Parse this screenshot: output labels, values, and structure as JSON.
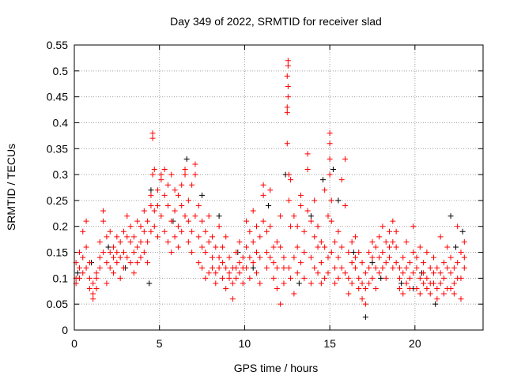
{
  "chart_data": {
    "type": "scatter",
    "title": "Day 349 of 2022, SRMTID for receiver slad",
    "xlabel": "GPS time / hours",
    "ylabel": "SRMTID / TECUs",
    "xlim": [
      0,
      24
    ],
    "ylim": [
      0,
      0.55
    ],
    "xticks": [
      0,
      5,
      10,
      15,
      20
    ],
    "yticks": [
      0,
      0.05,
      0.1,
      0.15,
      0.2,
      0.25,
      0.3,
      0.35,
      0.4,
      0.45,
      0.5,
      0.55
    ],
    "ytick_labels": [
      "0",
      "0.05",
      "0.1",
      "0.15",
      "0.2",
      "0.25",
      "0.3",
      "0.35",
      "0.4",
      "0.45",
      "0.5",
      "0.55"
    ],
    "grid": true,
    "marker": "plus",
    "series": [
      {
        "name": "series-black",
        "color": "#000000",
        "points": [
          [
            0.2,
            [
              0.11
            ]
          ],
          [
            1.0,
            [
              0.13
            ]
          ],
          [
            2.0,
            [
              0.16
            ]
          ],
          [
            3.0,
            [
              0.12
            ]
          ],
          [
            4.4,
            [
              0.09
            ]
          ],
          [
            4.5,
            [
              0.27
            ]
          ],
          [
            5.8,
            [
              0.21
            ]
          ],
          [
            6.6,
            [
              0.33
            ]
          ],
          [
            7.5,
            [
              0.26
            ]
          ],
          [
            8.5,
            [
              0.22
            ]
          ],
          [
            9.6,
            [
              0.15
            ]
          ],
          [
            10.5,
            [
              0.12
            ]
          ],
          [
            11.4,
            [
              0.24
            ]
          ],
          [
            12.4,
            [
              0.3
            ]
          ],
          [
            13.2,
            [
              0.09
            ]
          ],
          [
            13.9,
            [
              0.22
            ]
          ],
          [
            14.6,
            [
              0.29
            ]
          ],
          [
            15.2,
            [
              0.31
            ]
          ],
          [
            15.5,
            [
              0.25
            ]
          ],
          [
            16.4,
            [
              0.15
            ]
          ],
          [
            17.1,
            [
              0.025
            ]
          ],
          [
            17.5,
            [
              0.13
            ]
          ],
          [
            18.0,
            [
              0.1
            ]
          ],
          [
            19.2,
            [
              0.09
            ]
          ],
          [
            19.9,
            [
              0.08
            ]
          ],
          [
            20.4,
            [
              0.11
            ]
          ],
          [
            21.2,
            [
              0.05
            ]
          ],
          [
            22.1,
            [
              0.22
            ]
          ],
          [
            22.4,
            [
              0.16
            ]
          ],
          [
            22.8,
            [
              0.19
            ]
          ]
        ]
      },
      {
        "name": "series-red",
        "color": "#ff0000",
        "points": [
          [
            0.1,
            [
              0.1,
              0.13,
              0.09
            ]
          ],
          [
            0.3,
            [
              0.12,
              0.15,
              0.1
            ]
          ],
          [
            0.5,
            [
              0.11,
              0.19,
              0.14
            ]
          ],
          [
            0.7,
            [
              0.21,
              0.16,
              0.12
            ]
          ],
          [
            0.9,
            [
              0.1,
              0.08,
              0.13
            ]
          ],
          [
            1.1,
            [
              0.07,
              0.06,
              0.09
            ]
          ],
          [
            1.3,
            [
              0.08,
              0.11,
              0.1
            ]
          ],
          [
            1.5,
            [
              0.14,
              0.17,
              0.12
            ]
          ],
          [
            1.7,
            [
              0.23,
              0.21,
              0.15
            ]
          ],
          [
            1.9,
            [
              0.13,
              0.09,
              0.18
            ]
          ],
          [
            2.1,
            [
              0.15,
              0.12,
              0.19
            ]
          ],
          [
            2.3,
            [
              0.14,
              0.16,
              0.11
            ]
          ],
          [
            2.5,
            [
              0.18,
              0.13,
              0.15
            ]
          ],
          [
            2.7,
            [
              0.1,
              0.14,
              0.17
            ]
          ],
          [
            2.9,
            [
              0.19,
              0.15,
              0.12
            ]
          ],
          [
            3.1,
            [
              0.22,
              0.18,
              0.14
            ]
          ],
          [
            3.3,
            [
              0.13,
              0.17,
              0.2
            ]
          ],
          [
            3.5,
            [
              0.15,
              0.11,
              0.18
            ]
          ],
          [
            3.7,
            [
              0.16,
              0.13,
              0.21
            ]
          ],
          [
            3.9,
            [
              0.2,
              0.17,
              0.14
            ]
          ],
          [
            4.1,
            [
              0.19,
              0.15,
              0.23
            ]
          ],
          [
            4.3,
            [
              0.21,
              0.17,
              0.13
            ]
          ],
          [
            4.5,
            [
              0.24,
              0.26,
              0.19
            ]
          ],
          [
            4.6,
            [
              0.37,
              0.38,
              0.3
            ]
          ],
          [
            4.7,
            [
              0.31,
              0.23,
              0.2
            ]
          ],
          [
            4.9,
            [
              0.18,
              0.24,
              0.27
            ]
          ],
          [
            5.1,
            [
              0.29,
              0.3,
              0.22
            ]
          ],
          [
            5.3,
            [
              0.31,
              0.26,
              0.19
            ]
          ],
          [
            5.5,
            [
              0.24,
              0.28,
              0.17
            ]
          ],
          [
            5.7,
            [
              0.3,
              0.21,
              0.15
            ]
          ],
          [
            5.9,
            [
              0.27,
              0.23,
              0.18
            ]
          ],
          [
            6.1,
            [
              0.26,
              0.2,
              0.16
            ]
          ],
          [
            6.3,
            [
              0.28,
              0.24,
              0.19
            ]
          ],
          [
            6.5,
            [
              0.31,
              0.3,
              0.22
            ]
          ],
          [
            6.7,
            [
              0.25,
              0.21,
              0.17
            ]
          ],
          [
            6.9,
            [
              0.28,
              0.19,
              0.15
            ]
          ],
          [
            7.1,
            [
              0.32,
              0.3,
              0.22
            ]
          ],
          [
            7.3,
            [
              0.24,
              0.18,
              0.13
            ]
          ],
          [
            7.5,
            [
              0.21,
              0.16,
              0.12
            ]
          ],
          [
            7.7,
            [
              0.19,
              0.15,
              0.1
            ]
          ],
          [
            7.9,
            [
              0.22,
              0.17,
              0.11
            ]
          ],
          [
            8.1,
            [
              0.14,
              0.12,
              0.18
            ]
          ],
          [
            8.3,
            [
              0.16,
              0.11,
              0.09
            ]
          ],
          [
            8.5,
            [
              0.2,
              0.14,
              0.12
            ]
          ],
          [
            8.7,
            [
              0.13,
              0.1,
              0.16
            ]
          ],
          [
            8.9,
            [
              0.18,
              0.12,
              0.08
            ]
          ],
          [
            9.1,
            [
              0.11,
              0.14,
              0.1
            ]
          ],
          [
            9.3,
            [
              0.09,
              0.06,
              0.12
            ]
          ],
          [
            9.5,
            [
              0.15,
              0.12,
              0.1
            ]
          ],
          [
            9.7,
            [
              0.17,
              0.11,
              0.13
            ]
          ],
          [
            9.9,
            [
              0.12,
              0.09,
              0.14
            ]
          ],
          [
            10.1,
            [
              0.16,
              0.21,
              0.12
            ]
          ],
          [
            10.3,
            [
              0.19,
              0.14,
              0.1
            ]
          ],
          [
            10.5,
            [
              0.17,
              0.13,
              0.23
            ]
          ],
          [
            10.7,
            [
              0.15,
              0.2,
              0.11
            ]
          ],
          [
            10.9,
            [
              0.14,
              0.18,
              0.09
            ]
          ],
          [
            11.1,
            [
              0.28,
              0.26,
              0.21
            ]
          ],
          [
            11.3,
            [
              0.15,
              0.12,
              0.19
            ]
          ],
          [
            11.5,
            [
              0.27,
              0.2,
              0.14
            ]
          ],
          [
            11.7,
            [
              0.13,
              0.1,
              0.16
            ]
          ],
          [
            11.9,
            [
              0.08,
              0.12,
              0.17
            ]
          ],
          [
            12.1,
            [
              0.22,
              0.16,
              0.05
            ]
          ],
          [
            12.3,
            [
              0.12,
              0.09,
              0.14
            ]
          ],
          [
            12.5,
            [
              0.43,
              0.42,
              0.36,
              0.49
            ]
          ],
          [
            12.55,
            [
              0.52,
              0.51,
              0.47,
              0.45
            ]
          ],
          [
            12.6,
            [
              0.3,
              0.25,
              0.12
            ]
          ],
          [
            12.7,
            [
              0.29,
              0.2,
              0.1
            ]
          ],
          [
            12.9,
            [
              0.14,
              0.07,
              0.22
            ]
          ],
          [
            13.1,
            [
              0.2,
              0.16,
              0.11
            ]
          ],
          [
            13.3,
            [
              0.26,
              0.24,
              0.13
            ]
          ],
          [
            13.5,
            [
              0.19,
              0.15,
              0.1
            ]
          ],
          [
            13.7,
            [
              0.34,
              0.31,
              0.23
            ]
          ],
          [
            13.9,
            [
              0.21,
              0.14,
              0.09
            ]
          ],
          [
            14.1,
            [
              0.18,
              0.12,
              0.25
            ]
          ],
          [
            14.3,
            [
              0.16,
              0.11,
              0.2
            ]
          ],
          [
            14.5,
            [
              0.13,
              0.09,
              0.17
            ]
          ],
          [
            14.7,
            [
              0.27,
              0.16,
              0.1
            ]
          ],
          [
            14.9,
            [
              0.22,
              0.14,
              0.11
            ]
          ],
          [
            15.0,
            [
              0.38,
              0.36,
              0.33,
              0.3
            ]
          ],
          [
            15.1,
            [
              0.25,
              0.21,
              0.15
            ]
          ],
          [
            15.3,
            [
              0.17,
              0.12,
              0.09
            ]
          ],
          [
            15.5,
            [
              0.14,
              0.1,
              0.19
            ]
          ],
          [
            15.7,
            [
              0.29,
              0.16,
              0.12
            ]
          ],
          [
            15.9,
            [
              0.33,
              0.24,
              0.11
            ]
          ],
          [
            16.1,
            [
              0.15,
              0.1,
              0.07
            ]
          ],
          [
            16.3,
            [
              0.13,
              0.17,
              0.09
            ]
          ],
          [
            16.5,
            [
              0.18,
              0.12,
              0.14
            ]
          ],
          [
            16.7,
            [
              0.1,
              0.15,
              0.08
            ]
          ],
          [
            16.9,
            [
              0.13,
              0.09,
              0.06
            ]
          ],
          [
            17.1,
            [
              0.05,
              0.08,
              0.11
            ]
          ],
          [
            17.3,
            [
              0.12,
              0.15,
              0.09
            ]
          ],
          [
            17.5,
            [
              0.14,
              0.1,
              0.17
            ]
          ],
          [
            17.7,
            [
              0.16,
              0.12,
              0.08
            ]
          ],
          [
            17.9,
            [
              0.18,
              0.14,
              0.11
            ]
          ],
          [
            18.1,
            [
              0.15,
              0.2,
              0.12
            ]
          ],
          [
            18.3,
            [
              0.17,
              0.13,
              0.1
            ]
          ],
          [
            18.5,
            [
              0.19,
              0.14,
              0.16
            ]
          ],
          [
            18.7,
            [
              0.21,
              0.17,
              0.12
            ]
          ],
          [
            18.9,
            [
              0.16,
              0.19,
              0.13
            ]
          ],
          [
            19.1,
            [
              0.08,
              0.12,
              0.1
            ]
          ],
          [
            19.3,
            [
              0.14,
              0.11,
              0.07
            ]
          ],
          [
            19.5,
            [
              0.17,
              0.12,
              0.09
            ]
          ],
          [
            19.7,
            [
              0.1,
              0.13,
              0.08
            ]
          ],
          [
            19.9,
            [
              0.2,
              0.15,
              0.11
            ]
          ],
          [
            20.1,
            [
              0.12,
              0.08,
              0.14
            ]
          ],
          [
            20.3,
            [
              0.1,
              0.16,
              0.07
            ]
          ],
          [
            20.5,
            [
              0.13,
              0.09,
              0.11
            ]
          ],
          [
            20.7,
            [
              0.15,
              0.1,
              0.08
            ]
          ],
          [
            20.9,
            [
              0.12,
              0.07,
              0.09
            ]
          ],
          [
            21.1,
            [
              0.14,
              0.09,
              0.11
            ]
          ],
          [
            21.3,
            [
              0.08,
              0.12,
              0.06
            ]
          ],
          [
            21.5,
            [
              0.18,
              0.11,
              0.09
            ]
          ],
          [
            21.7,
            [
              0.1,
              0.07,
              0.13
            ]
          ],
          [
            21.9,
            [
              0.16,
              0.12,
              0.08
            ]
          ],
          [
            22.1,
            [
              0.11,
              0.08,
              0.14
            ]
          ],
          [
            22.3,
            [
              0.09,
              0.12,
              0.07
            ]
          ],
          [
            22.5,
            [
              0.2,
              0.13,
              0.1
            ]
          ],
          [
            22.7,
            [
              0.06,
              0.1,
              0.15
            ]
          ],
          [
            22.9,
            [
              0.17,
              0.14,
              0.12
            ]
          ]
        ]
      }
    ]
  }
}
